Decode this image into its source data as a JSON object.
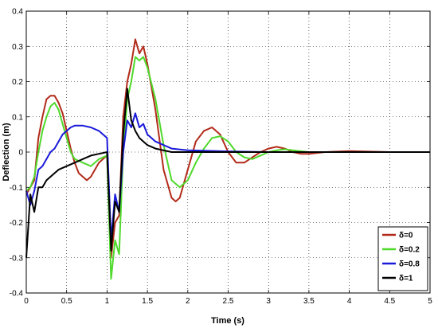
{
  "chart_data": {
    "type": "line",
    "title": "",
    "xlabel": "Time (s)",
    "ylabel": "Deflection (m)",
    "xlim": [
      0,
      5
    ],
    "ylim": [
      -0.4,
      0.4
    ],
    "xticks": [
      "0",
      "0.5",
      "1",
      "1.5",
      "2",
      "2.5",
      "3",
      "3.5",
      "4",
      "4.5",
      "5"
    ],
    "yticks": [
      "0.4",
      "0.3",
      "0.2",
      "0.1",
      "0",
      "-0.1",
      "-0.2",
      "-0.3",
      "-0.4"
    ],
    "grid": true,
    "legend_position": "bottom-right",
    "series": [
      {
        "name": "δ=0",
        "color": "#b22a1a",
        "points": [
          [
            0,
            -0.12
          ],
          [
            0.05,
            -0.1
          ],
          [
            0.1,
            -0.08
          ],
          [
            0.15,
            0.04
          ],
          [
            0.2,
            0.1
          ],
          [
            0.25,
            0.15
          ],
          [
            0.3,
            0.16
          ],
          [
            0.35,
            0.16
          ],
          [
            0.4,
            0.14
          ],
          [
            0.45,
            0.11
          ],
          [
            0.5,
            0.06
          ],
          [
            0.55,
            0.01
          ],
          [
            0.6,
            -0.03
          ],
          [
            0.65,
            -0.06
          ],
          [
            0.7,
            -0.07
          ],
          [
            0.75,
            -0.08
          ],
          [
            0.8,
            -0.07
          ],
          [
            0.85,
            -0.05
          ],
          [
            0.9,
            -0.03
          ],
          [
            0.95,
            -0.02
          ],
          [
            1.0,
            -0.01
          ],
          [
            1.05,
            -0.3
          ],
          [
            1.1,
            -0.2
          ],
          [
            1.15,
            -0.18
          ],
          [
            1.2,
            0.1
          ],
          [
            1.25,
            0.2
          ],
          [
            1.3,
            0.25
          ],
          [
            1.35,
            0.32
          ],
          [
            1.4,
            0.28
          ],
          [
            1.45,
            0.3
          ],
          [
            1.5,
            0.25
          ],
          [
            1.6,
            0.12
          ],
          [
            1.7,
            -0.05
          ],
          [
            1.8,
            -0.13
          ],
          [
            1.85,
            -0.14
          ],
          [
            1.9,
            -0.13
          ],
          [
            2.0,
            -0.05
          ],
          [
            2.1,
            0.03
          ],
          [
            2.2,
            0.06
          ],
          [
            2.3,
            0.07
          ],
          [
            2.4,
            0.05
          ],
          [
            2.5,
            0.0
          ],
          [
            2.6,
            -0.03
          ],
          [
            2.7,
            -0.03
          ],
          [
            2.8,
            -0.015
          ],
          [
            2.9,
            0.0
          ],
          [
            3.0,
            0.01
          ],
          [
            3.1,
            0.015
          ],
          [
            3.2,
            0.01
          ],
          [
            3.3,
            0.0
          ],
          [
            3.4,
            -0.005
          ],
          [
            3.5,
            -0.005
          ],
          [
            3.7,
            0.0
          ],
          [
            4.0,
            0.003
          ],
          [
            4.5,
            0.0
          ],
          [
            5.0,
            0.0
          ]
        ]
      },
      {
        "name": "δ=0.2",
        "color": "#4fd92b",
        "points": [
          [
            0,
            -0.11
          ],
          [
            0.05,
            -0.1
          ],
          [
            0.1,
            -0.07
          ],
          [
            0.15,
            0.0
          ],
          [
            0.2,
            0.06
          ],
          [
            0.25,
            0.1
          ],
          [
            0.3,
            0.13
          ],
          [
            0.35,
            0.14
          ],
          [
            0.4,
            0.12
          ],
          [
            0.45,
            0.08
          ],
          [
            0.5,
            0.04
          ],
          [
            0.55,
            0.0
          ],
          [
            0.6,
            -0.02
          ],
          [
            0.7,
            -0.03
          ],
          [
            0.8,
            -0.04
          ],
          [
            0.9,
            -0.02
          ],
          [
            1.0,
            -0.01
          ],
          [
            1.05,
            -0.36
          ],
          [
            1.1,
            -0.25
          ],
          [
            1.15,
            -0.29
          ],
          [
            1.2,
            0.0
          ],
          [
            1.25,
            0.15
          ],
          [
            1.3,
            0.2
          ],
          [
            1.35,
            0.27
          ],
          [
            1.4,
            0.26
          ],
          [
            1.45,
            0.27
          ],
          [
            1.5,
            0.24
          ],
          [
            1.6,
            0.15
          ],
          [
            1.7,
            0.02
          ],
          [
            1.8,
            -0.08
          ],
          [
            1.9,
            -0.1
          ],
          [
            2.0,
            -0.08
          ],
          [
            2.1,
            -0.03
          ],
          [
            2.2,
            0.01
          ],
          [
            2.3,
            0.04
          ],
          [
            2.4,
            0.045
          ],
          [
            2.5,
            0.03
          ],
          [
            2.6,
            0.0
          ],
          [
            2.7,
            -0.015
          ],
          [
            2.8,
            -0.02
          ],
          [
            2.9,
            -0.01
          ],
          [
            3.0,
            0.0
          ],
          [
            3.1,
            0.005
          ],
          [
            3.2,
            0.008
          ],
          [
            3.3,
            0.005
          ],
          [
            3.5,
            0.0
          ],
          [
            4.0,
            0.0
          ],
          [
            5.0,
            0.0
          ]
        ]
      },
      {
        "name": "δ=0.8",
        "color": "#1a1ad9",
        "points": [
          [
            0,
            -0.11
          ],
          [
            0.05,
            -0.15
          ],
          [
            0.1,
            -0.11
          ],
          [
            0.15,
            -0.05
          ],
          [
            0.2,
            -0.04
          ],
          [
            0.25,
            -0.02
          ],
          [
            0.3,
            0.0
          ],
          [
            0.35,
            0.01
          ],
          [
            0.4,
            0.03
          ],
          [
            0.45,
            0.05
          ],
          [
            0.5,
            0.06
          ],
          [
            0.55,
            0.07
          ],
          [
            0.6,
            0.075
          ],
          [
            0.7,
            0.075
          ],
          [
            0.8,
            0.07
          ],
          [
            0.9,
            0.06
          ],
          [
            1.0,
            0.04
          ],
          [
            1.05,
            -0.25
          ],
          [
            1.1,
            -0.12
          ],
          [
            1.15,
            -0.17
          ],
          [
            1.2,
            0.0
          ],
          [
            1.25,
            0.09
          ],
          [
            1.3,
            0.07
          ],
          [
            1.35,
            0.11
          ],
          [
            1.4,
            0.07
          ],
          [
            1.45,
            0.08
          ],
          [
            1.5,
            0.05
          ],
          [
            1.6,
            0.03
          ],
          [
            1.7,
            0.02
          ],
          [
            1.8,
            0.01
          ],
          [
            2.0,
            0.005
          ],
          [
            2.5,
            0.002
          ],
          [
            3.0,
            0.0
          ],
          [
            4.0,
            0.0
          ],
          [
            5.0,
            0.0
          ]
        ]
      },
      {
        "name": "δ=1",
        "color": "#000000",
        "points": [
          [
            0,
            -0.3
          ],
          [
            0.05,
            -0.12
          ],
          [
            0.1,
            -0.17
          ],
          [
            0.15,
            -0.1
          ],
          [
            0.2,
            -0.1
          ],
          [
            0.25,
            -0.08
          ],
          [
            0.3,
            -0.07
          ],
          [
            0.35,
            -0.06
          ],
          [
            0.4,
            -0.05
          ],
          [
            0.5,
            -0.04
          ],
          [
            0.6,
            -0.03
          ],
          [
            0.7,
            -0.02
          ],
          [
            0.8,
            -0.01
          ],
          [
            0.9,
            -0.005
          ],
          [
            1.0,
            0.0
          ],
          [
            1.05,
            -0.28
          ],
          [
            1.1,
            -0.14
          ],
          [
            1.15,
            -0.17
          ],
          [
            1.2,
            0.05
          ],
          [
            1.25,
            0.18
          ],
          [
            1.3,
            0.09
          ],
          [
            1.35,
            0.06
          ],
          [
            1.4,
            0.04
          ],
          [
            1.45,
            0.03
          ],
          [
            1.5,
            0.02
          ],
          [
            1.6,
            0.01
          ],
          [
            1.8,
            0.0
          ],
          [
            2.0,
            0.0
          ],
          [
            3.0,
            0.0
          ],
          [
            5.0,
            0.0
          ]
        ]
      }
    ]
  }
}
